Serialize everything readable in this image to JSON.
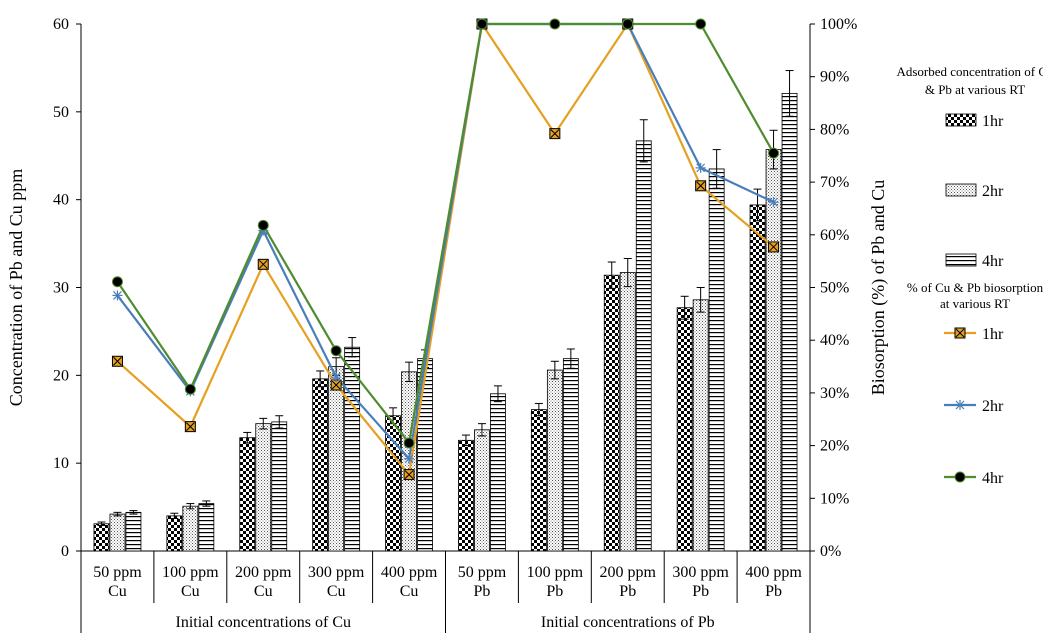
{
  "chart_data": {
    "type": "bar",
    "categories": [
      [
        "50 ppm",
        "Cu"
      ],
      [
        "100 ppm",
        "Cu"
      ],
      [
        "200 ppm",
        "Cu"
      ],
      [
        "300 ppm",
        "Cu"
      ],
      [
        "400 ppm",
        "Cu"
      ],
      [
        "50 ppm",
        "Pb"
      ],
      [
        "100 ppm",
        "Pb"
      ],
      [
        "200 ppm",
        "Pb"
      ],
      [
        "300 ppm",
        "Pb"
      ],
      [
        "400 ppm",
        "Pb"
      ]
    ],
    "group_labels": [
      "Initial concentrations of Cu",
      "Initial concentrations of Pb"
    ],
    "ylabel_left": "Concentration of  Pb and Cu  ppm",
    "ylabel_right": "Biosorption (%) of Pb and Cu",
    "ylim_left": [
      0,
      60
    ],
    "ylim_right": [
      0,
      100
    ],
    "left_ticks": [
      "0",
      "10",
      "20",
      "30",
      "40",
      "50",
      "60"
    ],
    "right_ticks": [
      "0%",
      "10%",
      "20%",
      "30%",
      "40%",
      "50%",
      "60%",
      "70%",
      "80%",
      "90%",
      "100%"
    ],
    "grid": false,
    "legend_position": "right",
    "bar_legend_title": "Adsorbed concentration of Cu & Pb at various RT",
    "line_legend_title": "% of Cu & Pb biosorption at various RT",
    "bar_series": [
      {
        "name": "1hr",
        "pattern": "checker",
        "values": [
          3.1,
          4.0,
          12.9,
          19.6,
          15.4,
          12.6,
          16.1,
          31.4,
          27.7,
          39.4
        ],
        "errors": [
          0.2,
          0.3,
          0.6,
          0.9,
          0.9,
          0.6,
          0.7,
          1.5,
          1.3,
          1.8
        ]
      },
      {
        "name": "2hr",
        "pattern": "dots",
        "values": [
          4.2,
          5.1,
          14.5,
          21.0,
          20.4,
          13.8,
          20.6,
          31.7,
          28.6,
          45.7
        ],
        "errors": [
          0.2,
          0.3,
          0.6,
          1.0,
          1.1,
          0.7,
          1.0,
          1.6,
          1.4,
          2.2
        ]
      },
      {
        "name": "4hr",
        "pattern": "hlines",
        "values": [
          4.4,
          5.4,
          14.7,
          23.2,
          21.9,
          17.9,
          21.9,
          46.7,
          43.5,
          52.1
        ],
        "errors": [
          0.2,
          0.3,
          0.7,
          1.1,
          1.0,
          0.9,
          1.1,
          2.4,
          2.2,
          2.6
        ]
      }
    ],
    "line_series": [
      {
        "name": "1hr",
        "color": "#E6A020",
        "marker": "square-x",
        "values": [
          36,
          23.6,
          54.4,
          31.5,
          14.5,
          100,
          79.2,
          100,
          69.3,
          57.7
        ]
      },
      {
        "name": "2hr",
        "color": "#4A7EBB",
        "marker": "asterisk",
        "values": [
          48.5,
          30.3,
          60.8,
          33.0,
          17.5,
          100,
          100,
          100,
          72.7,
          66.2
        ]
      },
      {
        "name": "4hr",
        "color": "#4E8C2E",
        "marker": "dot",
        "values": [
          51.1,
          30.7,
          61.8,
          38.0,
          20.5,
          100,
          100,
          100,
          100,
          75.5
        ]
      }
    ]
  }
}
